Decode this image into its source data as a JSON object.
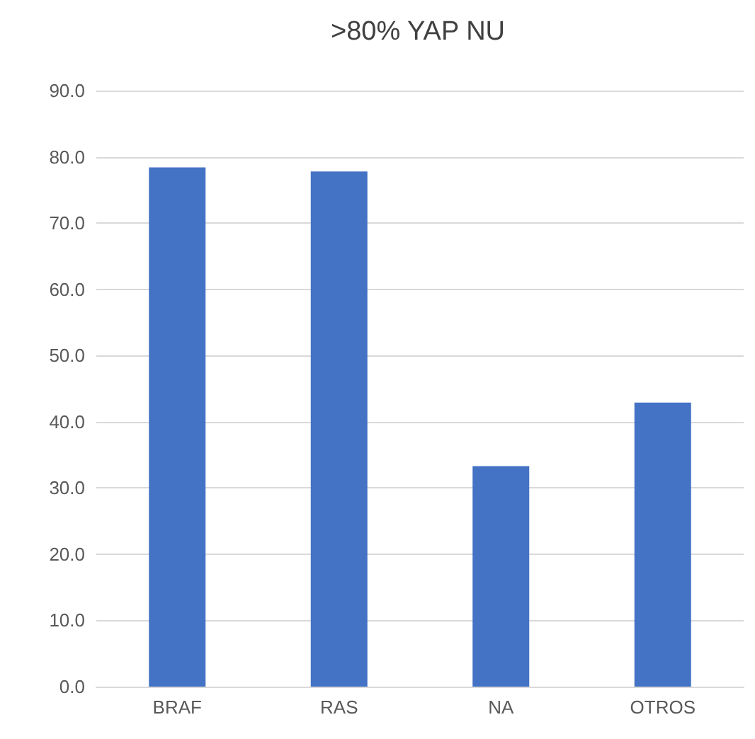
{
  "chart_data": {
    "type": "bar",
    "title": ">80% YAP NU",
    "categories": [
      "BRAF",
      "RAS",
      "NA",
      "OTROS"
    ],
    "values": [
      78.4,
      77.8,
      33.3,
      42.9
    ],
    "color": "#4472c4",
    "ylim": [
      0,
      90
    ],
    "yticks": [
      {
        "value": 0,
        "label": "0.0"
      },
      {
        "value": 10,
        "label": "10.0"
      },
      {
        "value": 20,
        "label": "20.0"
      },
      {
        "value": 30,
        "label": "30.0"
      },
      {
        "value": 40,
        "label": "40.0"
      },
      {
        "value": 50,
        "label": "50.0"
      },
      {
        "value": 60,
        "label": "60.0"
      },
      {
        "value": 70,
        "label": "70.0"
      },
      {
        "value": 80,
        "label": "80.0"
      },
      {
        "value": 90,
        "label": "90.0"
      }
    ],
    "grid": "y"
  }
}
